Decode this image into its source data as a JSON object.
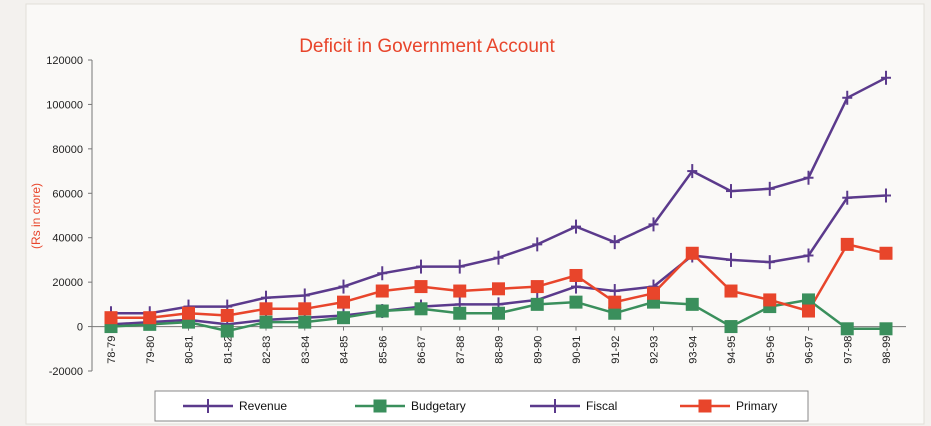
{
  "chart_data": {
    "type": "line",
    "title": "Deficit in Government  Account",
    "ylabel": "(Rs in crore)",
    "xlabel": "",
    "ylim": [
      -20000,
      120000
    ],
    "yticks": [
      -20000,
      0,
      20000,
      40000,
      60000,
      80000,
      100000,
      120000
    ],
    "grid": false,
    "legend_position": "bottom",
    "categories": [
      "78-79",
      "79-80",
      "80-81",
      "81-82",
      "82-83",
      "83-84",
      "84-85",
      "85-86",
      "86-87",
      "87-88",
      "88-89",
      "89-90",
      "90-91",
      "91-92",
      "92-93",
      "93-94",
      "94-95",
      "95-96",
      "96-97",
      "97-98",
      "98-99"
    ],
    "series": [
      {
        "name": "Revenue",
        "color": "#5b3a8c",
        "marker": "plus",
        "values": [
          1000,
          2000,
          3000,
          1000,
          3000,
          4000,
          5000,
          7000,
          9000,
          10000,
          10000,
          12000,
          18000,
          16000,
          18000,
          32000,
          30000,
          29000,
          32000,
          58000,
          59000
        ]
      },
      {
        "name": "Budgetary",
        "color": "#3a8f5c",
        "marker": "square",
        "values": [
          0,
          1000,
          2000,
          -2000,
          2000,
          2000,
          4000,
          7000,
          8000,
          6000,
          6000,
          10000,
          11000,
          6000,
          11000,
          10000,
          0,
          9000,
          12000,
          -1000,
          -1000
        ]
      },
      {
        "name": "Fiscal",
        "color": "#5b3a8c",
        "marker": "plus",
        "values": [
          6000,
          6000,
          9000,
          9000,
          13000,
          14000,
          18000,
          24000,
          27000,
          27000,
          31000,
          37000,
          45000,
          38000,
          46000,
          70000,
          61000,
          62000,
          67000,
          103000,
          112000
        ]
      },
      {
        "name": "Primary",
        "color": "#e8452b",
        "marker": "square",
        "values": [
          4000,
          4000,
          6000,
          5000,
          8000,
          8000,
          11000,
          16000,
          18000,
          16000,
          17000,
          18000,
          23000,
          11000,
          15000,
          33000,
          16000,
          12000,
          7000,
          37000,
          33000
        ]
      }
    ]
  }
}
